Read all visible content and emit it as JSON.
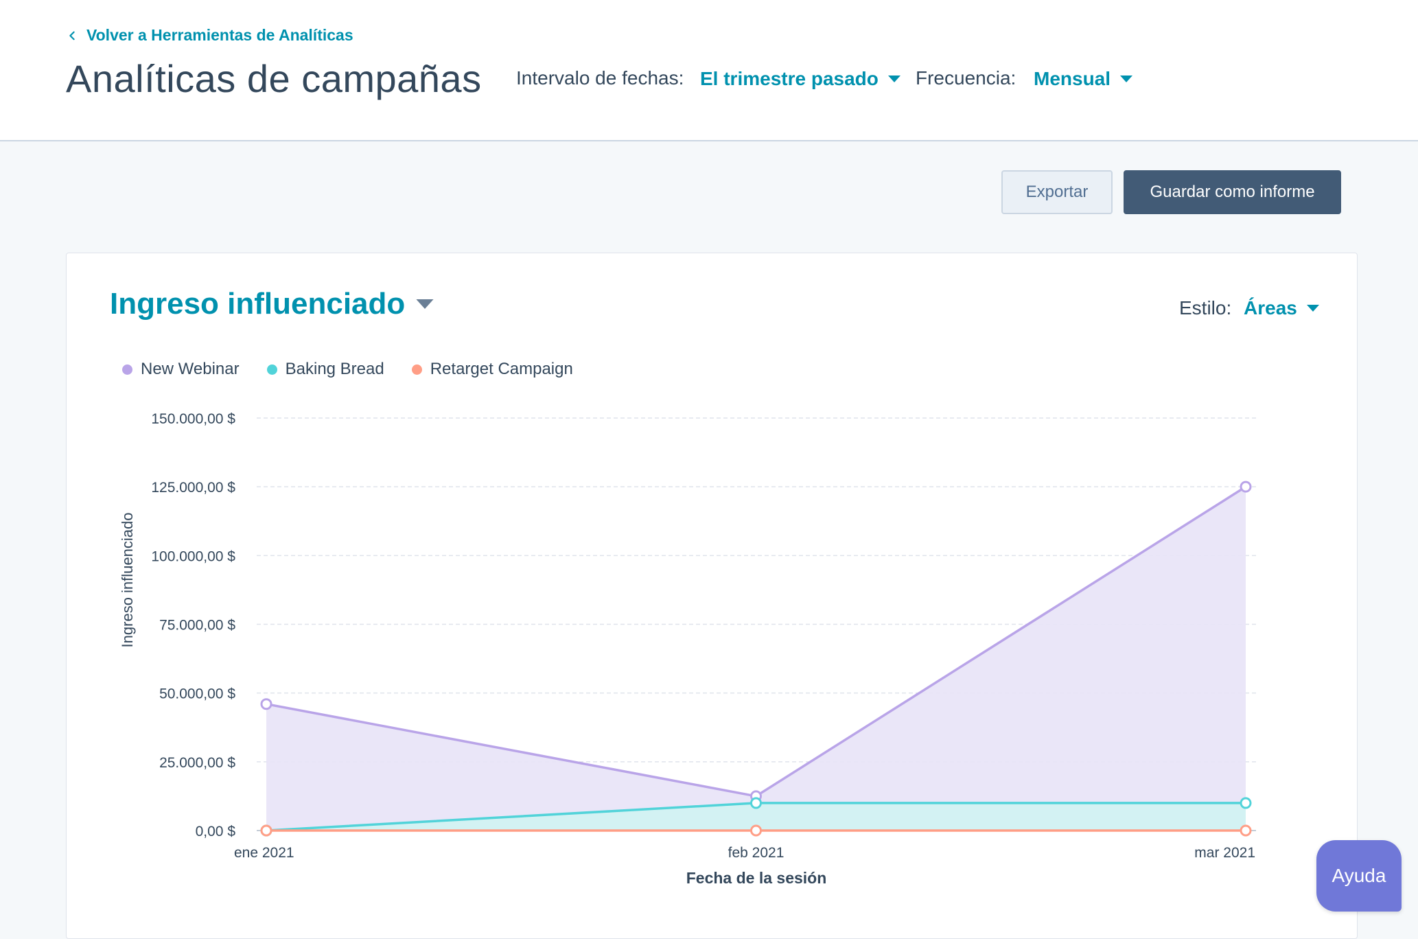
{
  "header": {
    "back_link": "Volver a Herramientas de Analíticas",
    "title": "Analíticas de campañas",
    "date_range_label": "Intervalo de fechas:",
    "date_range_value": "El trimestre pasado",
    "frequency_label": "Frecuencia:",
    "frequency_value": "Mensual"
  },
  "toolbar": {
    "export_label": "Exportar",
    "save_label": "Guardar como informe"
  },
  "report": {
    "title": "Ingreso influenciado",
    "style_label": "Estilo:",
    "style_value": "Áreas"
  },
  "help": {
    "label": "Ayuda"
  },
  "colors": {
    "accent": "#0091ae",
    "text": "#33475b",
    "save_button": "#425b76",
    "help_button": "#7078d8"
  },
  "chart_data": {
    "type": "area",
    "x": [
      "ene 2021",
      "feb 2021",
      "mar 2021"
    ],
    "xlabel": "Fecha de la sesión",
    "ylabel": "Ingreso influenciado",
    "ylim": [
      0,
      150000
    ],
    "yticks": [
      {
        "value": 0,
        "label": "0,00 $"
      },
      {
        "value": 25000,
        "label": "25.000,00 $"
      },
      {
        "value": 50000,
        "label": "50.000,00 $"
      },
      {
        "value": 75000,
        "label": "75.000,00 $"
      },
      {
        "value": 100000,
        "label": "100.000,00 $"
      },
      {
        "value": 125000,
        "label": "125.000,00 $"
      },
      {
        "value": 150000,
        "label": "150.000,00 $"
      }
    ],
    "grid": true,
    "legend_position": "top-left",
    "series": [
      {
        "name": "New Webinar",
        "values": [
          46000,
          12500,
          125000
        ],
        "line_color": "#b9a4e8",
        "fill_color": "#e8e3f7"
      },
      {
        "name": "Baking Bread",
        "values": [
          0,
          10000,
          10000
        ],
        "line_color": "#51d3d9",
        "fill_color": "#d0f3f2"
      },
      {
        "name": "Retarget Campaign",
        "values": [
          0,
          0,
          0
        ],
        "line_color": "#ff9e86",
        "fill_color": "#ffe1d9"
      }
    ]
  }
}
